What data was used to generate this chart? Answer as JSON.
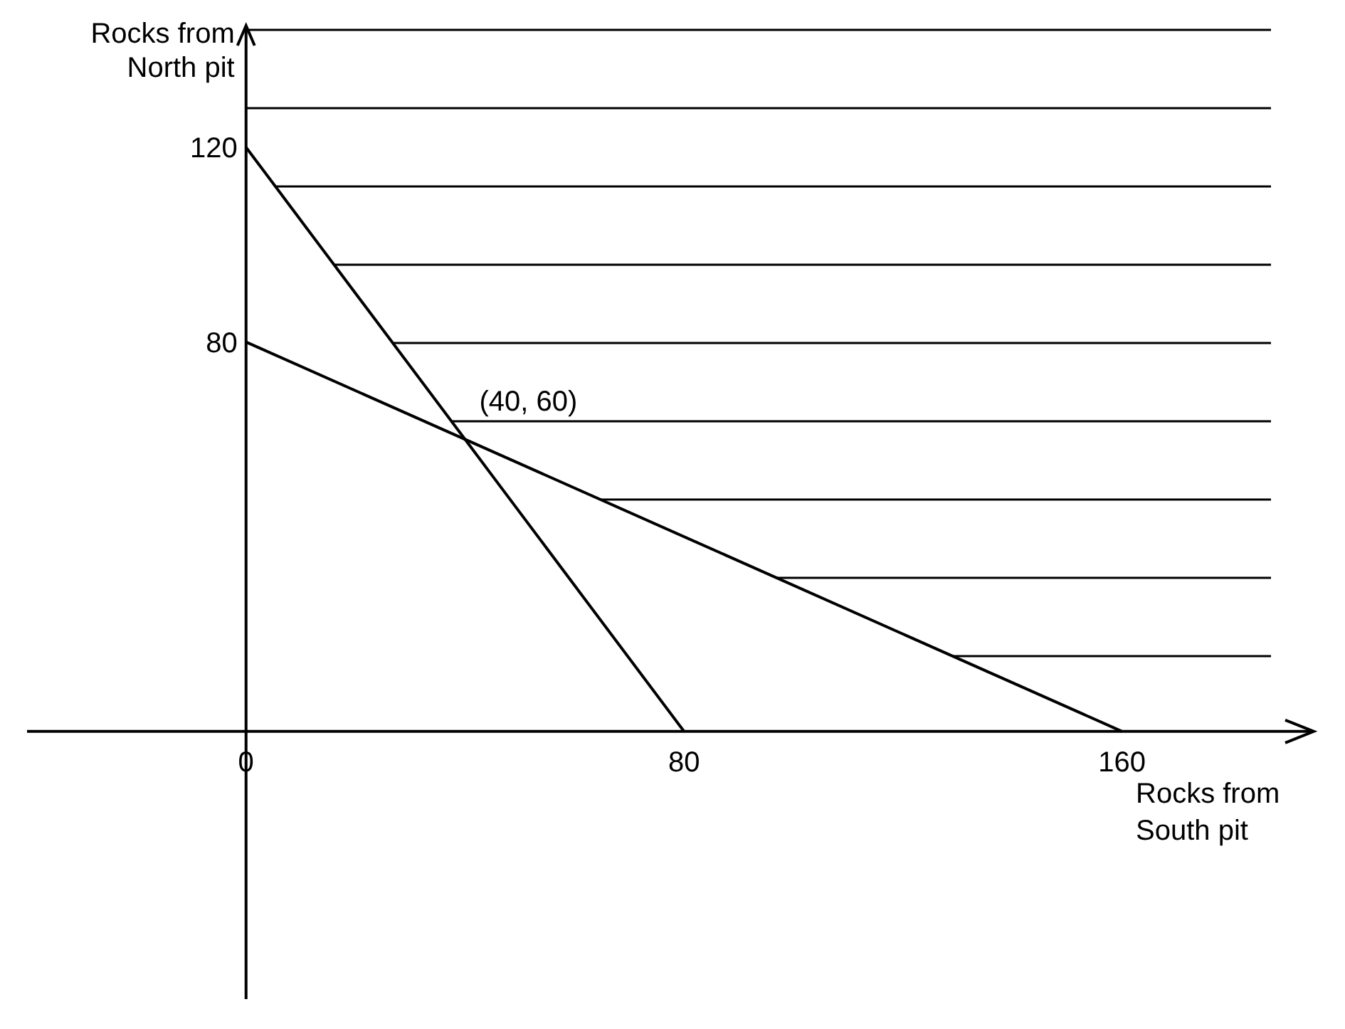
{
  "chart_data": {
    "type": "line",
    "xlabel": "Rocks from South pit",
    "ylabel": "Rocks from North pit",
    "xlim": [
      -40,
      195
    ],
    "ylim": [
      -55,
      145
    ],
    "xticks": [
      0,
      80,
      160
    ],
    "yticks": [
      80,
      120
    ],
    "series": [
      {
        "color": "#000000",
        "x": [
          0,
          80
        ],
        "values": [
          120,
          0
        ]
      },
      {
        "color": "#000000",
        "x": [
          0,
          160
        ],
        "values": [
          80,
          0
        ]
      }
    ],
    "annotations": [
      {
        "text": "(40, 60)",
        "x": 40,
        "y": 60
      }
    ],
    "marker": "none",
    "line_style": "solid"
  }
}
